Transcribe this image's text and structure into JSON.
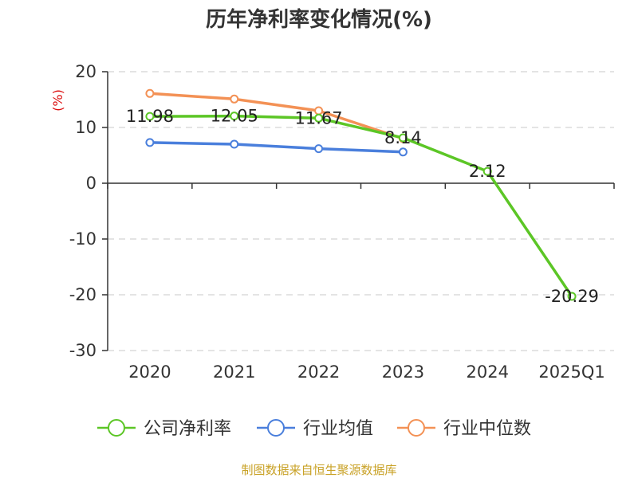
{
  "chart_data": {
    "type": "line",
    "title": "历年净利率变化情况(%)",
    "ylabel": "(%)",
    "xlabel": "",
    "categories": [
      "2020",
      "2021",
      "2022",
      "2023",
      "2024",
      "2025Q1"
    ],
    "ylim": [
      -30,
      20
    ],
    "yticks": [
      20,
      10,
      0,
      -10,
      -20,
      -30
    ],
    "grid": true,
    "legend_position": "bottom",
    "series": [
      {
        "name": "公司净利率",
        "color": "#5cc626",
        "values": [
          11.98,
          12.05,
          11.67,
          8.14,
          2.12,
          -20.29
        ],
        "labels": [
          "11.98",
          "12.05",
          "11.67",
          "8.14",
          "2.12",
          "-20.29"
        ]
      },
      {
        "name": "行业均值",
        "color": "#4a7fdc",
        "values": [
          7.3,
          7.0,
          6.2,
          5.6,
          null,
          null
        ]
      },
      {
        "name": "行业中位数",
        "color": "#f39155",
        "values": [
          16.1,
          15.1,
          13.0,
          8.0,
          null,
          null
        ]
      }
    ]
  },
  "footer": {
    "source": "制图数据来自恒生聚源数据库",
    "color": "#c9a227"
  },
  "colors": {
    "ylabel": "#dd1111",
    "axis": "#333333",
    "grid": "#c8c8c8"
  }
}
